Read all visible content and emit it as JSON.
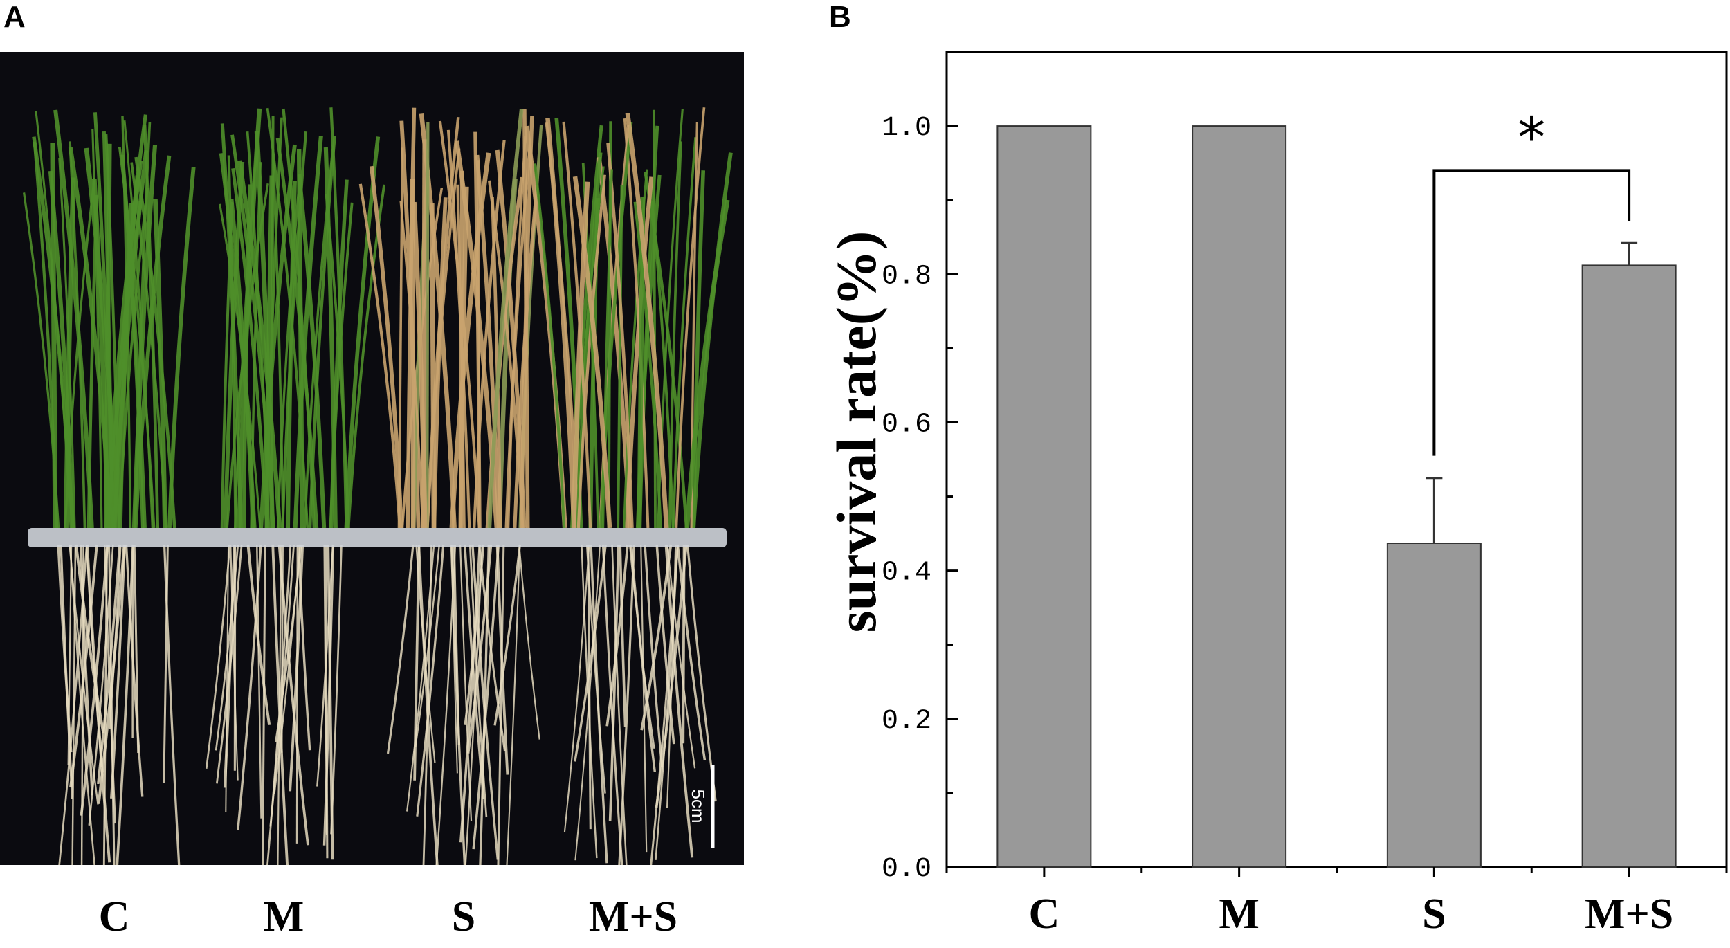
{
  "panels": {
    "a_label": "A",
    "b_label": "B"
  },
  "photo": {
    "groups": [
      "C",
      "M",
      "S",
      "M+S"
    ],
    "scale_bar_label": "5cm",
    "colors": {
      "background": "#0b0b10",
      "healthy_leaf": "#4f8f2a",
      "wilted_leaf": "#c9a36e",
      "root": "#e6dcc0",
      "tray": "#cfd4da"
    }
  },
  "chart_data": {
    "type": "bar",
    "categories": [
      "C",
      "M",
      "S",
      "M+S"
    ],
    "values": [
      1.0,
      1.0,
      0.437,
      0.812
    ],
    "errors": [
      0,
      0,
      0.088,
      0.03
    ],
    "ylabel": "survival rate(%)",
    "xlabel": "",
    "ylim": [
      0,
      1.1
    ],
    "yticks": [
      "0.0",
      "0.2",
      "0.4",
      "0.6",
      "0.8",
      "1.0"
    ],
    "bar_color": "#999999",
    "significance": {
      "between": [
        "S",
        "M+S"
      ],
      "label": "*"
    },
    "grid": false
  }
}
